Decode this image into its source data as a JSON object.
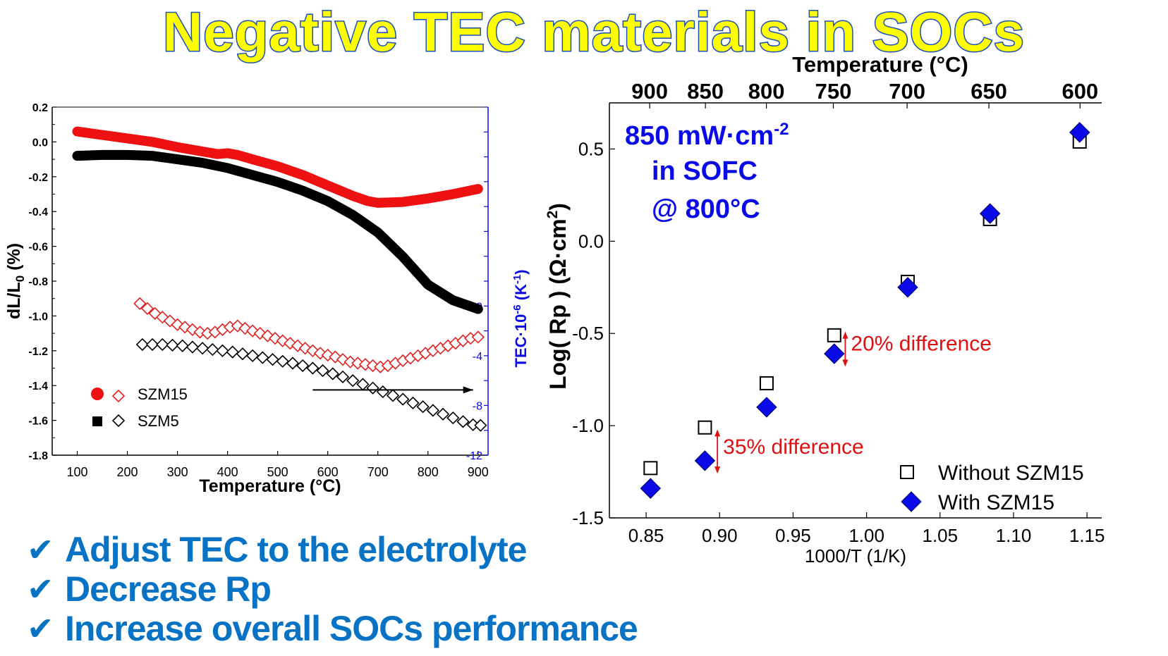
{
  "title": "Negative TEC materials in SOCs",
  "colors": {
    "title_fill": "#ffff00",
    "title_stroke": "#1a4fb5",
    "red": "#ee1111",
    "black": "#000000",
    "blue": "#0a0ae6",
    "red_hollow": "#dd2222",
    "bullet": "#0872c4",
    "annotation_red": "#dd1111"
  },
  "bullets": [
    "Adjust TEC to the electrolyte",
    "Decrease Rp",
    "Increase overall SOCs performance"
  ],
  "chart_data": [
    {
      "type": "line",
      "xlabel": "Temperature (°C)",
      "ylabel": "dL/L0 (%)",
      "y2label": "TEC·10-6 (K-1)",
      "xlim": [
        50,
        920
      ],
      "ylim": [
        -1.8,
        0.2
      ],
      "y2lim": [
        -12,
        16
      ],
      "xticks": [
        "100",
        "200",
        "300",
        "400",
        "500",
        "600",
        "700",
        "800",
        "900"
      ],
      "yticks": [
        "0.2",
        "0.0",
        "-0.2",
        "-0.4",
        "-0.6",
        "-0.8",
        "-1.0",
        "-1.2",
        "-1.4",
        "-1.6",
        "-1.8"
      ],
      "y2ticks": [
        "0",
        "-4",
        "-8",
        "-12"
      ],
      "legend": [
        "SZM15",
        "SZM5"
      ],
      "series": [
        {
          "name": "SZM15",
          "axis": "left",
          "marker": "line-thick",
          "color": "#ee1111",
          "x": [
            100,
            150,
            200,
            250,
            300,
            350,
            380,
            400,
            420,
            450,
            500,
            550,
            600,
            650,
            680,
            700,
            750,
            800,
            850,
            900
          ],
          "y": [
            0.06,
            0.04,
            0.02,
            0.0,
            -0.03,
            -0.055,
            -0.07,
            -0.065,
            -0.075,
            -0.1,
            -0.14,
            -0.19,
            -0.25,
            -0.31,
            -0.34,
            -0.35,
            -0.345,
            -0.325,
            -0.3,
            -0.27
          ]
        },
        {
          "name": "SZM5",
          "axis": "left",
          "marker": "line-thick",
          "color": "#000000",
          "x": [
            100,
            150,
            200,
            250,
            300,
            350,
            400,
            450,
            500,
            550,
            600,
            650,
            700,
            750,
            800,
            850,
            900
          ],
          "y": [
            -0.08,
            -0.075,
            -0.075,
            -0.08,
            -0.1,
            -0.12,
            -0.15,
            -0.19,
            -0.23,
            -0.28,
            -0.34,
            -0.42,
            -0.52,
            -0.66,
            -0.82,
            -0.91,
            -0.96
          ]
        },
        {
          "name": "SZM15",
          "axis": "right",
          "marker": "diamond-open",
          "color": "#dd2222",
          "x": [
            225,
            240,
            255,
            270,
            285,
            300,
            315,
            330,
            345,
            360,
            375,
            390,
            405,
            420,
            435,
            450,
            465,
            480,
            495,
            510,
            525,
            540,
            555,
            570,
            585,
            600,
            615,
            630,
            645,
            660,
            675,
            690,
            705,
            720,
            735,
            750,
            765,
            780,
            795,
            810,
            825,
            840,
            855,
            870,
            885,
            900
          ],
          "y": [
            0.2,
            -0.2,
            -0.6,
            -0.9,
            -1.2,
            -1.5,
            -1.7,
            -1.9,
            -2.1,
            -2.2,
            -2.1,
            -1.9,
            -1.7,
            -1.6,
            -1.8,
            -2.0,
            -2.2,
            -2.4,
            -2.6,
            -2.8,
            -3.0,
            -3.2,
            -3.4,
            -3.6,
            -3.8,
            -3.95,
            -4.1,
            -4.3,
            -4.5,
            -4.6,
            -4.7,
            -4.8,
            -4.9,
            -4.8,
            -4.6,
            -4.4,
            -4.2,
            -4.0,
            -3.8,
            -3.6,
            -3.4,
            -3.2,
            -3.0,
            -2.8,
            -2.6,
            -2.5
          ]
        },
        {
          "name": "SZM5",
          "axis": "right",
          "marker": "diamond-open",
          "color": "#000000",
          "x": [
            230,
            250,
            270,
            290,
            310,
            330,
            350,
            370,
            390,
            410,
            430,
            450,
            470,
            490,
            510,
            530,
            550,
            570,
            590,
            610,
            630,
            650,
            670,
            690,
            710,
            730,
            750,
            770,
            790,
            810,
            830,
            850,
            870,
            890,
            905
          ],
          "y": [
            -3.1,
            -3.1,
            -3.1,
            -3.15,
            -3.2,
            -3.3,
            -3.4,
            -3.5,
            -3.6,
            -3.7,
            -3.85,
            -4.0,
            -4.15,
            -4.3,
            -4.45,
            -4.6,
            -4.8,
            -5.0,
            -5.2,
            -5.45,
            -5.7,
            -6.0,
            -6.3,
            -6.6,
            -6.9,
            -7.2,
            -7.5,
            -7.8,
            -8.1,
            -8.4,
            -8.7,
            -9.0,
            -9.3,
            -9.55,
            -9.6
          ]
        }
      ]
    },
    {
      "type": "scatter",
      "xlabel": "1000/T (1/K)",
      "ylabel": "Log( Rp ) (Ω·cm2)",
      "x2label": "Temperature (°C)",
      "xlim": [
        0.825,
        1.16
      ],
      "ylim": [
        -1.5,
        0.75
      ],
      "xticks": [
        "0.85",
        "0.90",
        "0.95",
        "1.00",
        "1.05",
        "1.10",
        "1.15"
      ],
      "yticks": [
        "0.5",
        "0.0",
        "-0.5",
        "-1.0",
        "-1.5"
      ],
      "x2ticks": [
        "900",
        "850",
        "800",
        "750",
        "700",
        "650",
        "600"
      ],
      "legend": [
        "Without SZM15",
        "With SZM15"
      ],
      "annotation": "850 mW·cm-2 in SOFC @ 800°C",
      "notes": [
        "20% difference",
        "35% difference"
      ],
      "series": [
        {
          "name": "Without SZM15",
          "marker": "square-open",
          "color": "#000000",
          "x": [
            0.853,
            0.89,
            0.932,
            0.978,
            1.028,
            1.084,
            1.145
          ],
          "y": [
            -1.23,
            -1.01,
            -0.77,
            -0.51,
            -0.22,
            0.12,
            0.54
          ]
        },
        {
          "name": "With SZM15",
          "marker": "diamond-filled",
          "color": "#0a0ae6",
          "x": [
            0.853,
            0.89,
            0.932,
            0.978,
            1.028,
            1.084,
            1.145
          ],
          "y": [
            -1.34,
            -1.19,
            -0.9,
            -0.61,
            -0.25,
            0.15,
            0.59
          ]
        }
      ]
    }
  ]
}
